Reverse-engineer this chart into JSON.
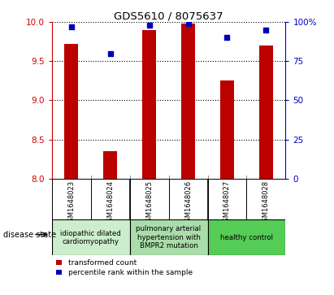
{
  "title": "GDS5610 / 8075637",
  "samples": [
    "GSM1648023",
    "GSM1648024",
    "GSM1648025",
    "GSM1648026",
    "GSM1648027",
    "GSM1648028"
  ],
  "transformed_counts": [
    9.72,
    8.35,
    9.9,
    9.98,
    9.25,
    9.7
  ],
  "percentile_ranks": [
    97,
    80,
    98,
    99,
    90,
    95
  ],
  "ylim_left": [
    8.0,
    10.0
  ],
  "ylim_right": [
    0,
    100
  ],
  "yticks_left": [
    8.0,
    8.5,
    9.0,
    9.5,
    10.0
  ],
  "yticks_right": [
    0,
    25,
    50,
    75,
    100
  ],
  "bar_color": "#bb0000",
  "dot_color": "#0000bb",
  "bar_width": 0.35,
  "disease_groups": [
    {
      "label": "idiopathic dilated\ncardiomyopathy",
      "indices": [
        0,
        1
      ],
      "color": "#cceecc"
    },
    {
      "label": "pulmonary arterial\nhypertension with\nBMPR2 mutation",
      "indices": [
        2,
        3
      ],
      "color": "#aaddaa"
    },
    {
      "label": "healthy control",
      "indices": [
        4,
        5
      ],
      "color": "#55cc55"
    }
  ],
  "legend_red_label": "transformed count",
  "legend_blue_label": "percentile rank within the sample",
  "disease_state_label": "disease state",
  "left_axis_color": "#cc0000",
  "right_axis_color": "#0000cc",
  "grid_style": "dotted",
  "background_color": "#ffffff",
  "panel_bg": "#cccccc",
  "cell_border_color": "#888888"
}
